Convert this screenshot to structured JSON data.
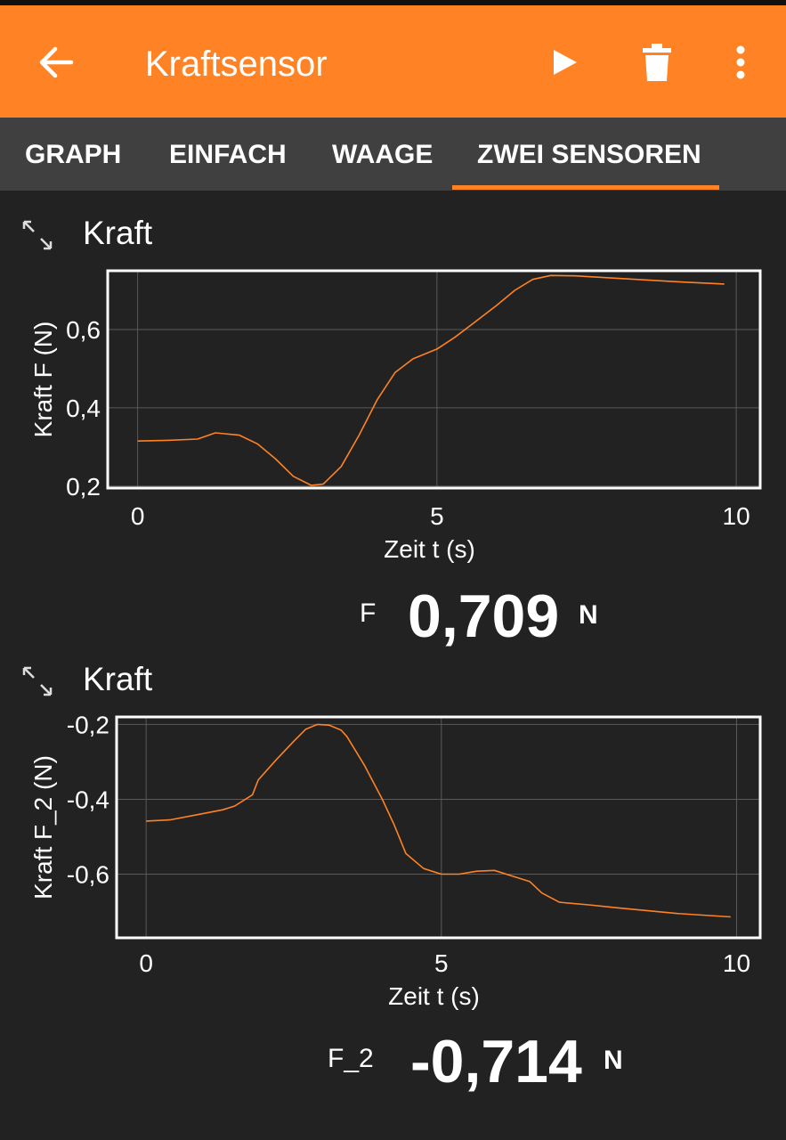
{
  "app": {
    "title": "Kraftsensor",
    "accent_color": "#ff8224",
    "icons": [
      "back-arrow-icon",
      "play-icon",
      "trash-icon",
      "more-vert-icon"
    ]
  },
  "tabs": [
    {
      "label": "GRAPH",
      "selected": false
    },
    {
      "label": "EINFACH",
      "selected": false
    },
    {
      "label": "WAAGE",
      "selected": false
    },
    {
      "label": "ZWEI SENSOREN",
      "selected": true
    }
  ],
  "sections": [
    {
      "title": "Kraft",
      "readout": {
        "name": "F",
        "value": "0,709",
        "unit": "N"
      }
    },
    {
      "title": "Kraft",
      "readout": {
        "name": "F_2",
        "value": "-0,714",
        "unit": "N"
      }
    }
  ],
  "chart_data": [
    {
      "type": "line",
      "xlabel": "Zeit t (s)",
      "ylabel": "Kraft F (N)",
      "xlim": [
        -0.5,
        10.4
      ],
      "ylim": [
        0.195,
        0.75
      ],
      "xticks": [
        0,
        5,
        10
      ],
      "xtick_labels": [
        "0",
        "5",
        "10"
      ],
      "yticks": [
        0.2,
        0.4,
        0.6
      ],
      "ytick_labels": [
        "0,2",
        "0,4",
        "0,6"
      ],
      "grid": true,
      "line_color": "#ff8224",
      "x": [
        0,
        0.5,
        1.0,
        1.3,
        1.7,
        2.0,
        2.3,
        2.6,
        2.9,
        3.1,
        3.4,
        3.7,
        4.0,
        4.3,
        4.6,
        5.0,
        5.3,
        5.6,
        6.0,
        6.3,
        6.6,
        6.9,
        7.3,
        8.0,
        9.0,
        9.8
      ],
      "y": [
        0.315,
        0.317,
        0.32,
        0.336,
        0.33,
        0.308,
        0.27,
        0.225,
        0.202,
        0.205,
        0.25,
        0.33,
        0.42,
        0.49,
        0.525,
        0.55,
        0.58,
        0.615,
        0.662,
        0.7,
        0.728,
        0.738,
        0.737,
        0.731,
        0.722,
        0.716
      ]
    },
    {
      "type": "line",
      "xlabel": "Zeit t (s)",
      "ylabel": "Kraft F_2 (N)",
      "xlim": [
        -0.5,
        10.4
      ],
      "ylim": [
        -0.77,
        -0.18
      ],
      "xticks": [
        0,
        5,
        10
      ],
      "xtick_labels": [
        "0",
        "5",
        "10"
      ],
      "yticks": [
        -0.2,
        -0.4,
        -0.6
      ],
      "ytick_labels": [
        "-0,2",
        "-0,4",
        "-0,6"
      ],
      "grid": true,
      "line_color": "#ff8224",
      "x": [
        0,
        0.4,
        0.9,
        1.3,
        1.5,
        1.8,
        1.9,
        2.2,
        2.5,
        2.7,
        2.9,
        3.1,
        3.3,
        3.4,
        3.7,
        4.0,
        4.2,
        4.4,
        4.7,
        5.0,
        5.3,
        5.6,
        5.9,
        6.2,
        6.5,
        6.7,
        7.0,
        7.5,
        8.0,
        9.0,
        9.9
      ],
      "y": [
        -0.458,
        -0.455,
        -0.44,
        -0.428,
        -0.418,
        -0.388,
        -0.348,
        -0.295,
        -0.245,
        -0.213,
        -0.2,
        -0.202,
        -0.215,
        -0.232,
        -0.31,
        -0.4,
        -0.468,
        -0.545,
        -0.585,
        -0.6,
        -0.6,
        -0.592,
        -0.59,
        -0.605,
        -0.62,
        -0.65,
        -0.675,
        -0.682,
        -0.69,
        -0.705,
        -0.714
      ]
    }
  ]
}
